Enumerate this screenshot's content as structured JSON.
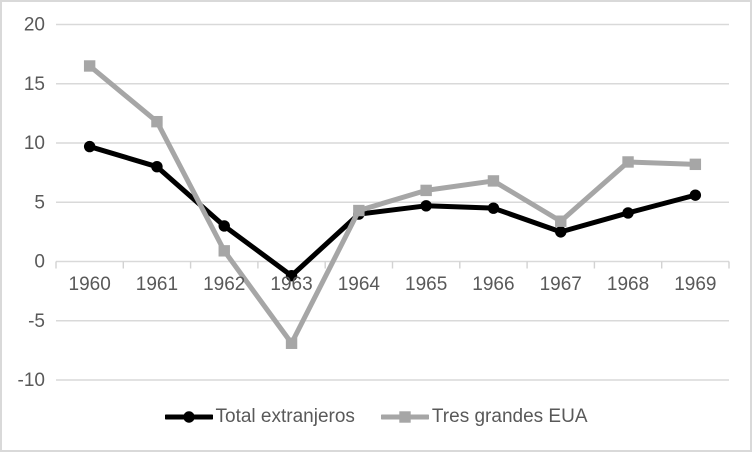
{
  "chart_data": {
    "type": "line",
    "title": "",
    "xlabel": "",
    "ylabel": "",
    "categories": [
      "1960",
      "1961",
      "1962",
      "1963",
      "1964",
      "1965",
      "1966",
      "1967",
      "1968",
      "1969"
    ],
    "series": [
      {
        "name": "Total extranjeros",
        "color": "#000000",
        "marker": "circle",
        "values": [
          9.7,
          8.0,
          3.0,
          -1.2,
          4.0,
          4.7,
          4.5,
          2.5,
          4.1,
          5.6
        ]
      },
      {
        "name": "Tres grandes EUA",
        "color": "#a6a6a6",
        "marker": "square",
        "values": [
          16.5,
          11.8,
          0.9,
          -6.9,
          4.3,
          6.0,
          6.8,
          3.4,
          8.4,
          8.2
        ]
      }
    ],
    "ylim": [
      -10,
      20
    ],
    "yticks": [
      20,
      15,
      10,
      5,
      0,
      -5,
      -10
    ],
    "grid": true,
    "legend_position": "bottom"
  },
  "colors": {
    "axis_text": "#595959",
    "gridline": "#d9d9d9",
    "axis_tick": "#d2d2d2",
    "frame_border": "#d9d9d9",
    "background": "#ffffff"
  }
}
